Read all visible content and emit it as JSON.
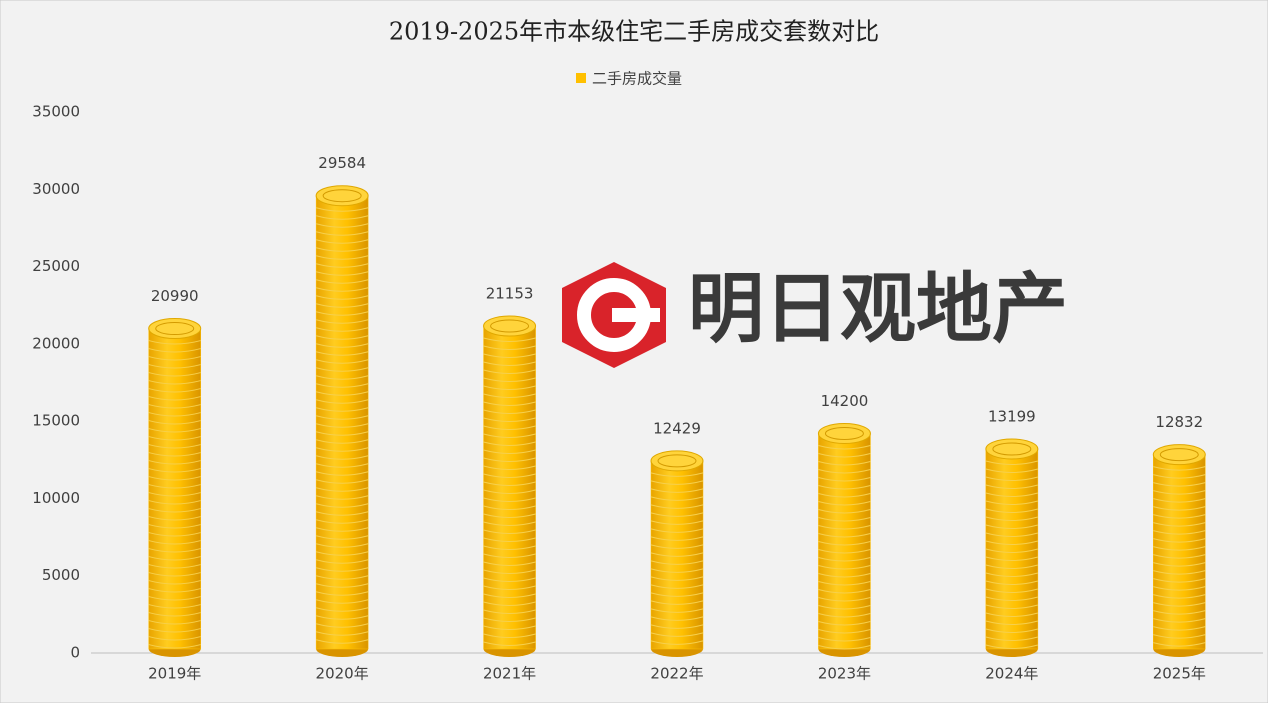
{
  "chart_data": {
    "type": "bar",
    "title": "2019-2025年市本级住宅二手房成交套数对比",
    "watermark": "明日观地产",
    "categories": [
      "2019年",
      "2020年",
      "2021年",
      "2022年",
      "2023年",
      "2024年",
      "2025年"
    ],
    "series": [
      {
        "name": "二手房成交量",
        "color": "#FFC000",
        "values": [
          20990,
          29584,
          21153,
          12429,
          14200,
          13199,
          12832
        ]
      }
    ],
    "ylim": [
      0,
      35000
    ],
    "yticks": [
      0,
      5000,
      10000,
      15000,
      20000,
      25000,
      30000,
      35000
    ],
    "grid": false,
    "legend": "top"
  }
}
